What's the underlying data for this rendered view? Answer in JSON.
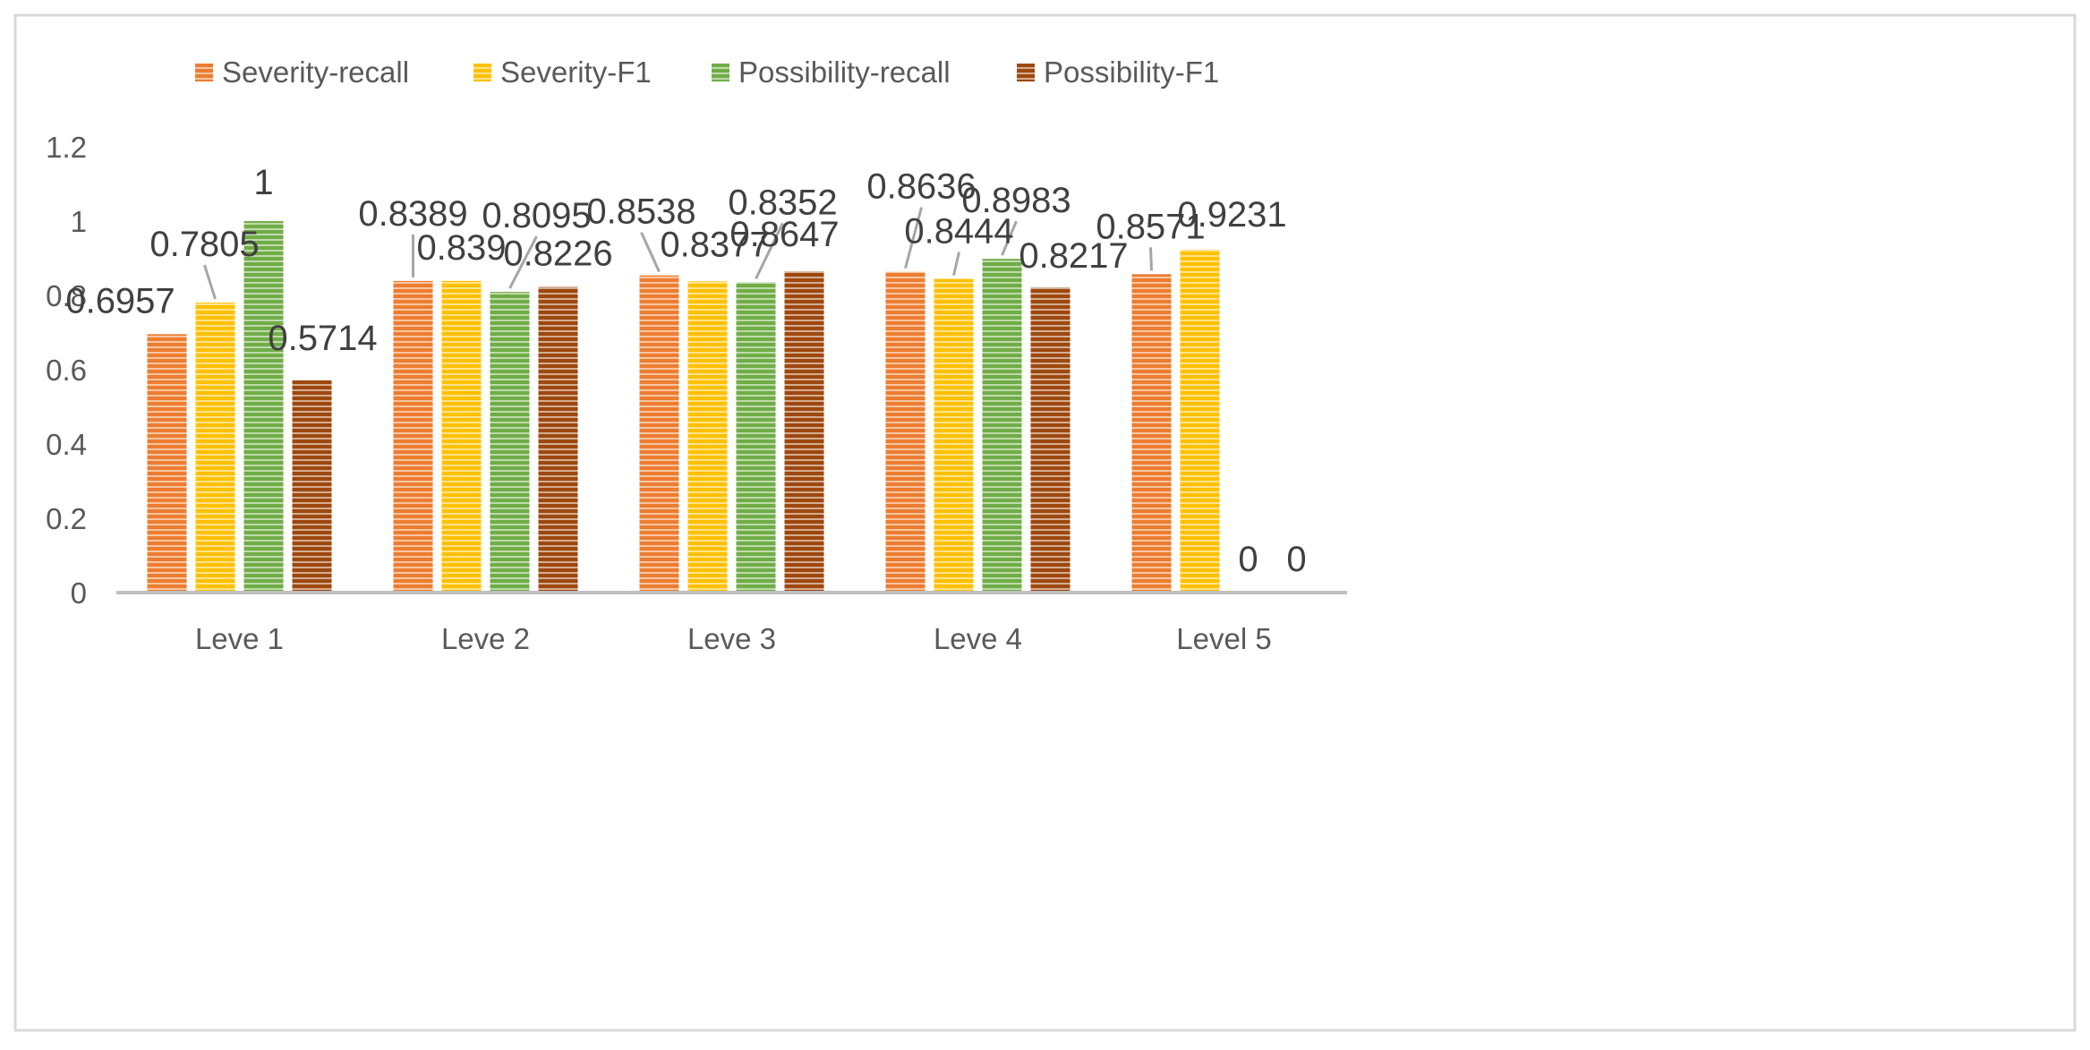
{
  "chart_data": {
    "type": "bar",
    "title": "",
    "xlabel": "",
    "ylabel": "",
    "categories": [
      "Leve 1",
      "Leve 2",
      "Leve 3",
      "Leve 4",
      "Level 5"
    ],
    "ylim": [
      0,
      1.2
    ],
    "yticks": [
      0,
      0.2,
      0.4,
      0.6,
      0.8,
      1,
      1.2
    ],
    "ytick_labels": [
      "0",
      "0.2",
      "0.4",
      "0.6",
      "0.8",
      "1",
      "1.2"
    ],
    "grid": false,
    "legend_position": "top",
    "series": [
      {
        "name": "Severity-recall",
        "color": "#ED7D31",
        "values": [
          0.6957,
          0.8389,
          0.8538,
          0.8636,
          0.8571
        ],
        "labels": [
          "0.6957",
          "0.8389",
          "0.8538",
          "0.8636",
          "0.8571"
        ]
      },
      {
        "name": "Severity-F1",
        "color": "#FFC000",
        "values": [
          0.7805,
          0.839,
          0.8377,
          0.8444,
          0.9231
        ],
        "labels": [
          "0.7805",
          "0.839",
          "0.8377",
          "0.8444",
          "0.9231"
        ]
      },
      {
        "name": "Possibility-recall",
        "color": "#70AD47",
        "values": [
          1,
          0.8095,
          0.8352,
          0.8983,
          0
        ],
        "labels": [
          "1",
          "0.8095",
          "0.8352",
          "0.8983",
          "0"
        ]
      },
      {
        "name": "Possibility-F1",
        "color": "#9E480E",
        "values": [
          0.5714,
          0.8226,
          0.8647,
          0.8217,
          0
        ],
        "labels": [
          "0.5714",
          "0.8226",
          "0.8647",
          "0.8217",
          "0"
        ]
      }
    ]
  }
}
